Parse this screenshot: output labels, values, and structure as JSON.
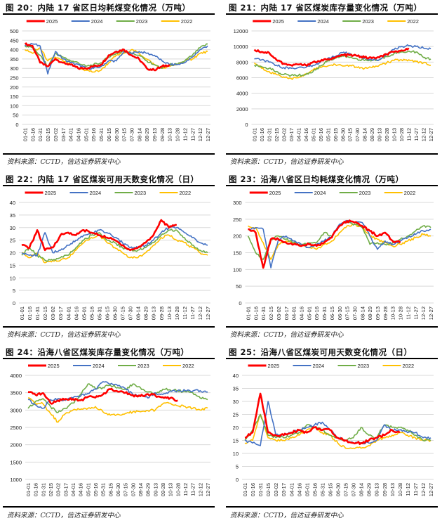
{
  "source_text": "资料来源：CCTD，信达证券研发中心",
  "series_colors": {
    "2025": "#ff0000",
    "2024": "#4472c4",
    "2023": "#70ad47",
    "2022": "#ffc000"
  },
  "chart_data": [
    {
      "id": "fig20",
      "title": "图 20：内陆 17 省区日均耗煤变化情况（万吨）",
      "type": "line",
      "xlabel": "",
      "ylabel": "",
      "ylim": [
        0,
        500
      ],
      "yticks": [
        0,
        50,
        100,
        150,
        200,
        250,
        300,
        350,
        400,
        450,
        500
      ],
      "x": [
        "01-01",
        "01-16",
        "01-31",
        "02-15",
        "03-02",
        "03-17",
        "04-01",
        "04-16",
        "05-01",
        "05-16",
        "05-31",
        "06-15",
        "06-30",
        "07-15",
        "07-30",
        "08-14",
        "08-29",
        "09-13",
        "09-28",
        "10-13",
        "10-28",
        "11-12",
        "11-27",
        "12-12",
        "12-27"
      ],
      "grid": true,
      "legend": "top-center",
      "series": [
        {
          "name": "2025",
          "values": [
            430,
            420,
            330,
            310,
            350,
            330,
            320,
            300,
            300,
            310,
            320,
            370,
            390,
            400,
            370,
            350,
            300,
            290,
            310,
            320,
            null,
            null,
            null,
            null,
            null
          ]
        },
        {
          "name": "2024",
          "values": [
            420,
            430,
            420,
            270,
            390,
            350,
            330,
            320,
            300,
            300,
            310,
            340,
            340,
            390,
            380,
            390,
            380,
            370,
            340,
            320,
            320,
            330,
            360,
            400,
            420
          ]
        },
        {
          "name": "2023",
          "values": [
            420,
            410,
            370,
            310,
            380,
            360,
            340,
            330,
            310,
            320,
            330,
            360,
            380,
            390,
            380,
            370,
            340,
            320,
            300,
            320,
            320,
            340,
            370,
            410,
            430
          ]
        },
        {
          "name": "2022",
          "values": [
            400,
            380,
            410,
            340,
            360,
            340,
            320,
            300,
            290,
            280,
            290,
            330,
            370,
            380,
            400,
            380,
            350,
            320,
            300,
            310,
            320,
            340,
            350,
            380,
            390
          ]
        }
      ]
    },
    {
      "id": "fig21",
      "title": "图 21：内陆 17 省区煤炭库存量变化情况（万吨）",
      "type": "line",
      "xlabel": "",
      "ylabel": "",
      "ylim": [
        0,
        12000
      ],
      "yticks": [
        0,
        2000,
        4000,
        6000,
        8000,
        10000,
        12000
      ],
      "x": [
        "01-01",
        "01-16",
        "01-31",
        "02-15",
        "03-02",
        "03-17",
        "04-01",
        "04-16",
        "05-01",
        "05-16",
        "05-31",
        "06-15",
        "06-30",
        "07-15",
        "07-30",
        "08-14",
        "08-29",
        "09-13",
        "09-28",
        "10-13",
        "10-28",
        "11-12",
        "11-27",
        "12-12",
        "12-27"
      ],
      "grid": true,
      "legend": "top-center",
      "series": [
        {
          "name": "2025",
          "values": [
            9600,
            9300,
            9200,
            8300,
            7800,
            7600,
            7700,
            7600,
            8000,
            8100,
            8400,
            8600,
            8900,
            8900,
            8800,
            8600,
            8500,
            8600,
            9000,
            9300,
            9500,
            9800,
            null,
            null,
            null
          ]
        },
        {
          "name": "2024",
          "values": [
            8400,
            8300,
            8000,
            7600,
            7300,
            7200,
            7300,
            7300,
            7600,
            8000,
            8500,
            8700,
            9200,
            9100,
            8800,
            8500,
            8300,
            8300,
            9000,
            9600,
            10000,
            10100,
            10000,
            9800,
            9700
          ]
        },
        {
          "name": "2023",
          "values": [
            7600,
            7400,
            7200,
            6800,
            6400,
            6300,
            6300,
            6400,
            6800,
            7500,
            8200,
            8500,
            8800,
            8600,
            8400,
            8200,
            8200,
            8300,
            8700,
            9100,
            9300,
            9400,
            9300,
            8600,
            8400
          ]
        },
        {
          "name": "2022",
          "values": [
            7900,
            7200,
            6800,
            6400,
            6100,
            5900,
            6000,
            6500,
            7000,
            7300,
            7500,
            7700,
            7500,
            7600,
            7300,
            7200,
            7300,
            7600,
            7900,
            8200,
            8300,
            8300,
            8100,
            7900,
            7600
          ]
        }
      ]
    },
    {
      "id": "fig22",
      "title": "图 22：内陆 17 省区煤炭可用天数变化情况（日）",
      "type": "line",
      "xlabel": "",
      "ylabel": "",
      "ylim": [
        0,
        40
      ],
      "yticks": [
        0,
        5,
        10,
        15,
        20,
        25,
        30,
        35,
        40
      ],
      "x": [
        "01-01",
        "01-16",
        "01-31",
        "02-15",
        "03-02",
        "03-17",
        "04-01",
        "04-16",
        "05-01",
        "05-16",
        "05-31",
        "06-15",
        "06-30",
        "07-15",
        "07-30",
        "08-14",
        "08-29",
        "09-13",
        "09-28",
        "10-13",
        "10-28",
        "11-12",
        "11-27",
        "12-12",
        "12-27"
      ],
      "grid": true,
      "legend": "top-center",
      "series": [
        {
          "name": "2025",
          "values": [
            23,
            22,
            29,
            21,
            22,
            27,
            28,
            27,
            29,
            28,
            27,
            26,
            25,
            23,
            21,
            22,
            24,
            27,
            33,
            30,
            31,
            null,
            null,
            null,
            null
          ]
        },
        {
          "name": "2024",
          "values": [
            20,
            19,
            19,
            28,
            20,
            21,
            23,
            25,
            27,
            28,
            29,
            28,
            26,
            24,
            22,
            22,
            23,
            25,
            28,
            30,
            30,
            28,
            26,
            24,
            23
          ]
        },
        {
          "name": "2023",
          "values": [
            19,
            22,
            19,
            17,
            17,
            18,
            19,
            22,
            25,
            27,
            28,
            25,
            24,
            22,
            21,
            21,
            22,
            24,
            27,
            29,
            29,
            26,
            23,
            21,
            20
          ]
        },
        {
          "name": "2022",
          "values": [
            20,
            18,
            20,
            16,
            17,
            17,
            18,
            21,
            24,
            26,
            27,
            24,
            22,
            20,
            18,
            18,
            20,
            23,
            26,
            27,
            25,
            24,
            22,
            20,
            19
          ]
        }
      ]
    },
    {
      "id": "fig23",
      "title": "图 23：沿海八省区日均耗煤变化情况（万吨）",
      "type": "line",
      "xlabel": "",
      "ylabel": "",
      "ylim": [
        0,
        300
      ],
      "yticks": [
        0,
        50,
        100,
        150,
        200,
        250,
        300
      ],
      "x": [
        "01-01",
        "01-16",
        "01-31",
        "02-15",
        "03-02",
        "03-17",
        "04-01",
        "04-16",
        "05-01",
        "05-16",
        "05-31",
        "06-15",
        "06-30",
        "07-15",
        "07-30",
        "08-14",
        "08-29",
        "09-13",
        "09-28",
        "10-13",
        "10-28",
        "11-12",
        "11-27",
        "12-12",
        "12-27"
      ],
      "grid": true,
      "legend": "top-center",
      "series": [
        {
          "name": "2025",
          "values": [
            220,
            210,
            105,
            190,
            190,
            180,
            175,
            170,
            175,
            170,
            180,
            195,
            230,
            245,
            240,
            230,
            215,
            200,
            210,
            185,
            180,
            null,
            null,
            null,
            null
          ]
        },
        {
          "name": "2024",
          "values": [
            220,
            225,
            220,
            105,
            190,
            200,
            185,
            175,
            165,
            175,
            185,
            200,
            235,
            245,
            240,
            240,
            200,
            160,
            185,
            175,
            185,
            195,
            205,
            215,
            220
          ]
        },
        {
          "name": "2023",
          "values": [
            200,
            150,
            130,
            190,
            200,
            190,
            180,
            175,
            180,
            180,
            210,
            200,
            230,
            240,
            235,
            225,
            175,
            180,
            175,
            180,
            190,
            200,
            215,
            230,
            225
          ]
        },
        {
          "name": "2022",
          "values": [
            230,
            225,
            180,
            130,
            175,
            185,
            180,
            170,
            165,
            160,
            175,
            185,
            210,
            230,
            235,
            225,
            200,
            190,
            180,
            170,
            175,
            185,
            195,
            205,
            200
          ]
        }
      ]
    },
    {
      "id": "fig24",
      "title": "图 24：沿海八省区煤炭库存量变化情况（万吨）",
      "type": "line",
      "xlabel": "",
      "ylabel": "",
      "ylim": [
        1000,
        4000
      ],
      "yticks": [
        1000,
        1500,
        2000,
        2500,
        3000,
        3500,
        4000
      ],
      "x": [
        "01-01",
        "01-16",
        "01-31",
        "02-15",
        "03-02",
        "03-17",
        "04-01",
        "04-16",
        "05-01",
        "05-16",
        "05-31",
        "06-15",
        "06-30",
        "07-15",
        "07-30",
        "08-14",
        "08-29",
        "09-13",
        "09-28",
        "10-13",
        "10-28",
        "11-12",
        "11-27",
        "12-12",
        "12-27"
      ],
      "grid": true,
      "legend": "top-center",
      "series": [
        {
          "name": "2025",
          "values": [
            3520,
            3440,
            3490,
            3200,
            3280,
            3320,
            3320,
            3280,
            3380,
            3360,
            3450,
            3600,
            3530,
            3500,
            3430,
            3400,
            3460,
            3420,
            3370,
            3350,
            3280,
            null,
            null,
            null,
            null
          ]
        },
        {
          "name": "2024",
          "values": [
            3300,
            3150,
            3050,
            3300,
            3330,
            3280,
            3350,
            3400,
            3480,
            3600,
            3820,
            3750,
            3700,
            3620,
            3450,
            3420,
            3350,
            3500,
            3450,
            3550,
            3560,
            3560,
            3550,
            3560,
            3520
          ]
        },
        {
          "name": "2023",
          "values": [
            3050,
            3250,
            3330,
            3100,
            2930,
            3050,
            3200,
            3450,
            3750,
            3620,
            3650,
            3720,
            3650,
            3600,
            3750,
            3650,
            3520,
            3450,
            3600,
            3580,
            3560,
            3530,
            3500,
            3350,
            3300
          ]
        },
        {
          "name": "2022",
          "values": [
            3350,
            3200,
            3180,
            2900,
            2650,
            2900,
            3000,
            3020,
            3050,
            3100,
            2950,
            2850,
            2880,
            2900,
            2950,
            2950,
            2980,
            3000,
            3180,
            3200,
            3120,
            3100,
            3050,
            3000,
            3060
          ]
        }
      ]
    },
    {
      "id": "fig25",
      "title": "图 25：沿海八省区煤炭可用天数变化情况（日）",
      "type": "line",
      "xlabel": "",
      "ylabel": "",
      "ylim": [
        0,
        40
      ],
      "yticks": [
        0,
        5,
        10,
        15,
        20,
        25,
        30,
        35,
        40
      ],
      "x": [
        "01-01",
        "01-16",
        "01-31",
        "02-15",
        "03-02",
        "03-17",
        "04-01",
        "04-16",
        "05-01",
        "05-16",
        "05-31",
        "06-15",
        "06-30",
        "07-15",
        "07-30",
        "08-14",
        "08-29",
        "09-13",
        "09-28",
        "10-13",
        "10-28",
        "11-12",
        "11-27",
        "12-12",
        "12-27"
      ],
      "grid": true,
      "legend": "top-center",
      "series": [
        {
          "name": "2025",
          "values": [
            16,
            18,
            33,
            18,
            17,
            17,
            18,
            19,
            18,
            20,
            19,
            19,
            16,
            15,
            14,
            14,
            15,
            16,
            17,
            19,
            18,
            null,
            null,
            null,
            null
          ]
        },
        {
          "name": "2024",
          "values": [
            15,
            14,
            13,
            30,
            17,
            17,
            18,
            19,
            20,
            21,
            22,
            19,
            16,
            15,
            14,
            14,
            14,
            15,
            21,
            19,
            19,
            18,
            18,
            16,
            16
          ]
        },
        {
          "name": "2023",
          "values": [
            15,
            19,
            25,
            17,
            16,
            16,
            17,
            18,
            21,
            20,
            19,
            17,
            16,
            15,
            16,
            20,
            17,
            16,
            21,
            20,
            20,
            19,
            17,
            15,
            15
          ]
        },
        {
          "name": "2022",
          "values": [
            14,
            15,
            25,
            16,
            15,
            15,
            16,
            17,
            19,
            20,
            18,
            17,
            14,
            12,
            12,
            12,
            13,
            15,
            16,
            17,
            18,
            17,
            16,
            15,
            15
          ]
        }
      ]
    }
  ]
}
